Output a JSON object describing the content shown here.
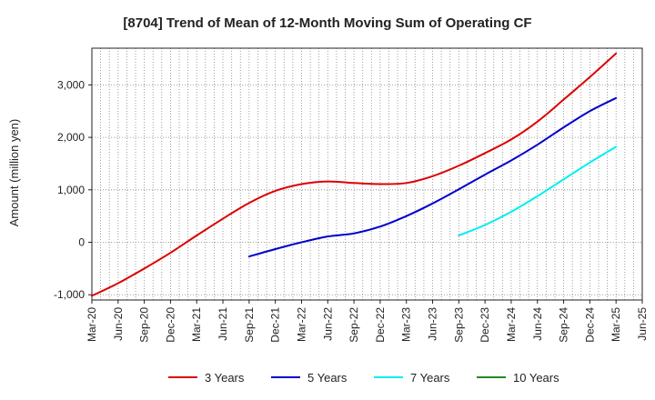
{
  "chart_data": {
    "type": "line",
    "title": "[8704]  Trend of Mean of 12-Month Moving Sum of Operating CF",
    "xlabel": "",
    "ylabel": "Amount (million yen)",
    "ylim": [
      -1100,
      3700
    ],
    "yticks": [
      -1000,
      0,
      1000,
      2000,
      3000
    ],
    "ytick_labels": [
      "-1,000",
      "0",
      "1,000",
      "2,000",
      "3,000"
    ],
    "grid": true,
    "legend_position": "bottom",
    "x_categories": [
      "Mar-20",
      "Jun-20",
      "Sep-20",
      "Dec-20",
      "Mar-21",
      "Jun-21",
      "Sep-21",
      "Dec-21",
      "Mar-22",
      "Jun-22",
      "Sep-22",
      "Dec-22",
      "Mar-23",
      "Jun-23",
      "Sep-23",
      "Dec-23",
      "Mar-24",
      "Jun-24",
      "Sep-24",
      "Dec-24",
      "Mar-25",
      "Jun-25"
    ],
    "series": [
      {
        "name": "3 Years",
        "color": "#dd0000",
        "values": [
          -1020,
          -780,
          -500,
          -200,
          130,
          450,
          750,
          980,
          1110,
          1160,
          1130,
          1110,
          1130,
          1260,
          1460,
          1700,
          1960,
          2300,
          2720,
          3150,
          3600,
          null
        ]
      },
      {
        "name": "5 Years",
        "color": "#0000cc",
        "values": [
          null,
          null,
          null,
          null,
          null,
          null,
          -270,
          -130,
          0,
          110,
          170,
          300,
          500,
          740,
          1010,
          1290,
          1560,
          1860,
          2190,
          2500,
          2750,
          null
        ]
      },
      {
        "name": "7 Years",
        "color": "#00eeee",
        "values": [
          null,
          null,
          null,
          null,
          null,
          null,
          null,
          null,
          null,
          null,
          null,
          null,
          null,
          null,
          130,
          330,
          580,
          880,
          1200,
          1520,
          1820,
          null
        ]
      },
      {
        "name": "10 Years",
        "color": "#228b22",
        "values": [
          null,
          null,
          null,
          null,
          null,
          null,
          null,
          null,
          null,
          null,
          null,
          null,
          null,
          null,
          null,
          null,
          null,
          null,
          null,
          null,
          null,
          null
        ]
      }
    ]
  }
}
